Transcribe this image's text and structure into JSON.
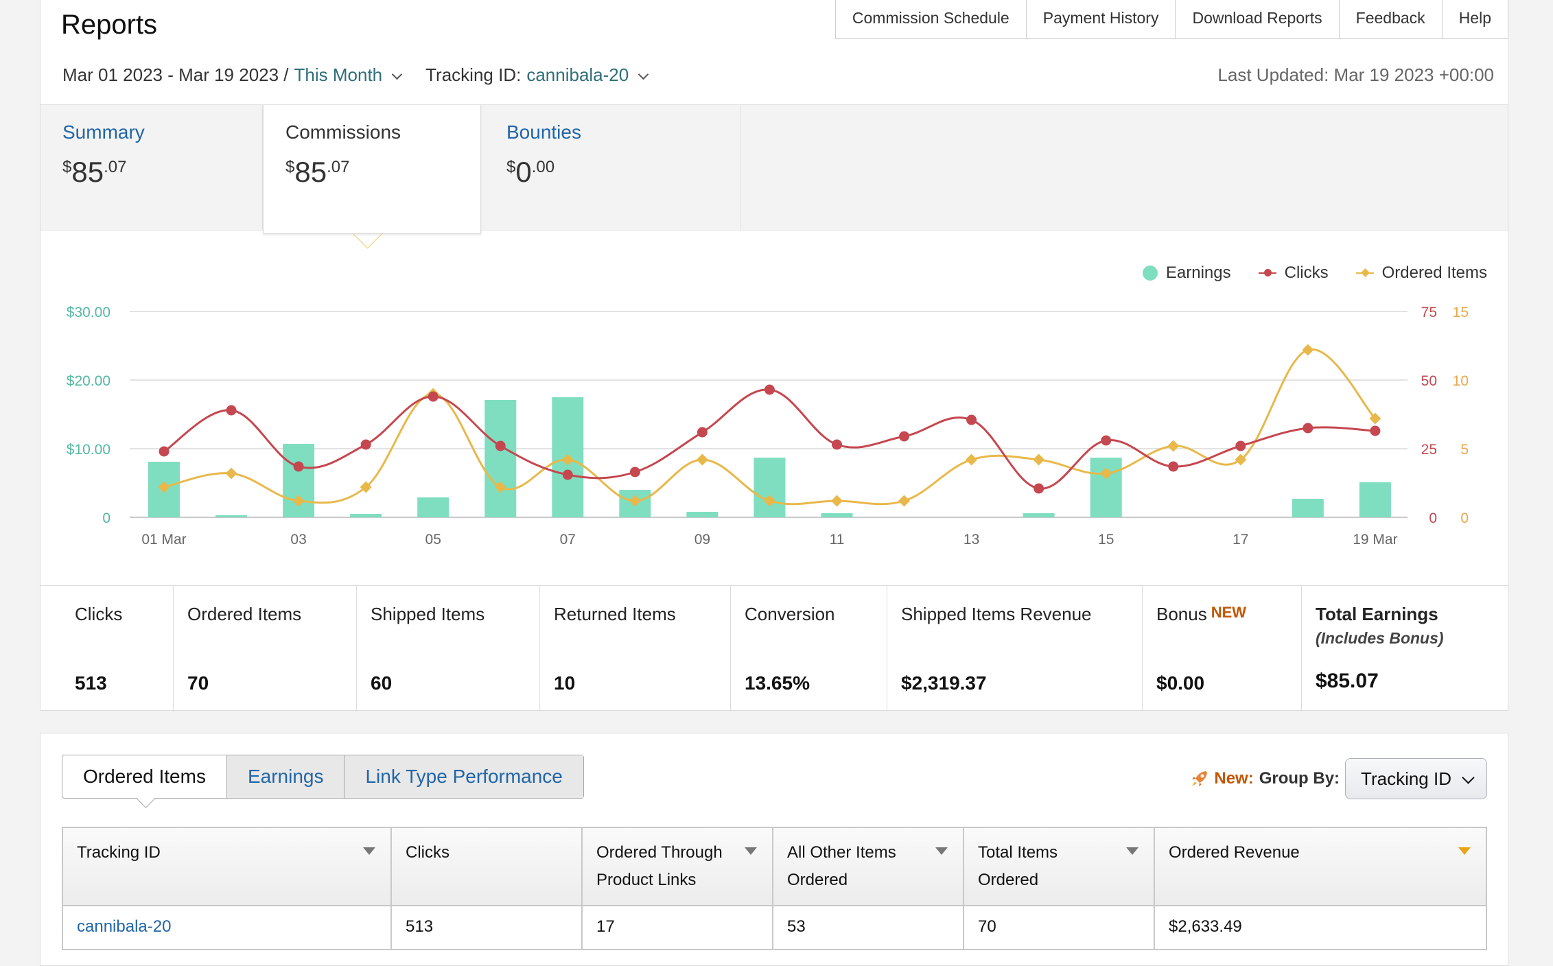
{
  "header": {
    "title": "Reports",
    "nav": [
      "Commission Schedule",
      "Payment History",
      "Download Reports",
      "Feedback",
      "Help"
    ],
    "date_range": "Mar 01 2023 - Mar 19 2023 /",
    "date_preset": "This Month",
    "tracking_label": "Tracking ID:",
    "tracking_value": "cannibala-20",
    "last_updated": "Last Updated: Mar 19 2023 +00:00"
  },
  "summary_tabs": [
    {
      "label": "Summary",
      "dollar": "$",
      "whole": "85",
      "cents": ".07"
    },
    {
      "label": "Commissions",
      "dollar": "$",
      "whole": "85",
      "cents": ".07"
    },
    {
      "label": "Bounties",
      "dollar": "$",
      "whole": "0",
      "cents": ".00"
    }
  ],
  "legend": [
    "Earnings",
    "Clicks",
    "Ordered Items"
  ],
  "chart_data": {
    "type": "bar+line",
    "categories": [
      "01 Mar",
      "02",
      "03",
      "04",
      "05",
      "06",
      "07",
      "08",
      "09",
      "10",
      "11",
      "12",
      "13",
      "14",
      "15",
      "16",
      "17",
      "18",
      "19 Mar"
    ],
    "x_tick_labels": [
      "01 Mar",
      "03",
      "05",
      "07",
      "09",
      "11",
      "13",
      "15",
      "17",
      "19 Mar"
    ],
    "y_left_ticks": [
      "0",
      "$10.00",
      "$20.00",
      "$30.00"
    ],
    "y_clicks_ticks": [
      "0",
      "25",
      "50",
      "75"
    ],
    "y_orders_ticks": [
      "0",
      "5",
      "10",
      "15"
    ],
    "ylim_earnings": [
      0,
      30
    ],
    "ylim_clicks": [
      0,
      75
    ],
    "ylim_orders": [
      0,
      15
    ],
    "series": [
      {
        "name": "Earnings",
        "axis": "left",
        "kind": "bar",
        "values": [
          8.1,
          0.3,
          10.7,
          0.5,
          2.9,
          17.1,
          17.5,
          4.0,
          0.8,
          8.7,
          0.6,
          0,
          0,
          0.6,
          8.7,
          0,
          0,
          2.7,
          5.1
        ]
      },
      {
        "name": "Clicks",
        "axis": "clicks",
        "kind": "line",
        "values": [
          24,
          39,
          18.5,
          26.5,
          44,
          26,
          15.5,
          16.5,
          31,
          46.5,
          26.5,
          29.5,
          35.5,
          10.5,
          28,
          18.5,
          26,
          32.5,
          31.5
        ]
      },
      {
        "name": "Ordered Items",
        "axis": "orders",
        "kind": "line",
        "values": [
          2.2,
          3.2,
          1.2,
          2.2,
          9.0,
          2.2,
          4.2,
          1.2,
          4.2,
          1.2,
          1.2,
          1.2,
          4.2,
          4.2,
          3.2,
          5.2,
          4.2,
          12.2,
          7.2
        ]
      }
    ]
  },
  "stats": [
    {
      "label": "Clicks",
      "value": "513"
    },
    {
      "label": "Ordered Items",
      "value": "70"
    },
    {
      "label": "Shipped Items",
      "value": "60"
    },
    {
      "label": "Returned Items",
      "value": "10"
    },
    {
      "label": "Conversion",
      "value": "13.65%"
    },
    {
      "label": "Shipped Items Revenue",
      "value": "$2,319.37"
    },
    {
      "label": "Bonus",
      "badge": "NEW",
      "value": "$0.00"
    },
    {
      "label": "Total Earnings",
      "note": "(Includes Bonus)",
      "value": "$85.07"
    }
  ],
  "view_tabs": [
    "Ordered Items",
    "Earnings",
    "Link Type Performance"
  ],
  "group_by": {
    "new_label": "New:",
    "label": "Group By:",
    "value": "Tracking ID"
  },
  "table": {
    "headers": [
      "Tracking ID",
      "Clicks",
      "Ordered Through Product Links",
      "All Other Items Ordered",
      "Total Items Ordered",
      "Ordered Revenue"
    ],
    "rows": [
      [
        "cannibala-20",
        "513",
        "17",
        "53",
        "70",
        "$2,633.49"
      ]
    ]
  },
  "colors": {
    "earnings": "#7fdec0",
    "clicks": "#c5474f",
    "orders": "#e8b84a",
    "link": "#2166a8",
    "accent_new": "#c45500"
  }
}
